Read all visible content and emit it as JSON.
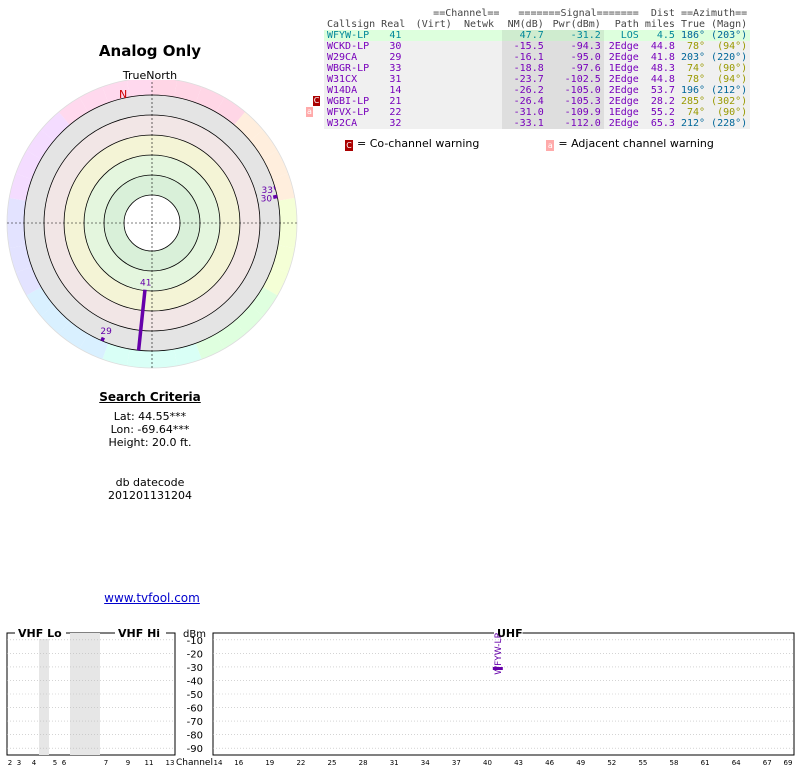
{
  "title": "Analog Only",
  "true_north_label": "TrueNorth",
  "north_marker": "N",
  "search": {
    "heading": "Search Criteria",
    "lat": "Lat: 44.55***",
    "lon": "Lon: -69.64***",
    "height": "Height: 20.0 ft.",
    "db_label": "db datecode",
    "db_value": "201201131204"
  },
  "site_link": "www.tvfool.com",
  "table": {
    "group_headers": {
      "channel": "==Channel==",
      "signal": "=======Signal=======",
      "dist": "Dist",
      "azimuth": "==Azimuth=="
    },
    "headers": [
      "Callsign",
      "Real",
      "(Virt)",
      "Netwk",
      "NM(dB)",
      "Pwr(dBm)",
      "Path",
      "miles",
      "True",
      "(Magn)"
    ],
    "rows": [
      {
        "callsign": "WFYW-LP",
        "real": "41",
        "virt": "",
        "netwk": "",
        "nm": "47.7",
        "pwr": "-31.2",
        "path": "LOS",
        "miles": "4.5",
        "true": "186°",
        "magn": "(203°)",
        "color": "#008899",
        "bg": "#ddffdd"
      },
      {
        "callsign": "WCKD-LP",
        "real": "30",
        "virt": "",
        "netwk": "",
        "nm": "-15.5",
        "pwr": "-94.3",
        "path": "2Edge",
        "miles": "44.8",
        "true": "78°",
        "magn": "(94°)",
        "color": "#7700bb",
        "bg": "#f0f0f0"
      },
      {
        "callsign": "W29CA",
        "real": "29",
        "virt": "",
        "netwk": "",
        "nm": "-16.1",
        "pwr": "-95.0",
        "path": "2Edge",
        "miles": "41.8",
        "true": "203°",
        "magn": "(220°)",
        "color": "#7700bb",
        "bg": "#f0f0f0"
      },
      {
        "callsign": "WBGR-LP",
        "real": "33",
        "virt": "",
        "netwk": "",
        "nm": "-18.8",
        "pwr": "-97.6",
        "path": "1Edge",
        "miles": "48.3",
        "true": "74°",
        "magn": "(90°)",
        "color": "#7700bb",
        "bg": "#f0f0f0"
      },
      {
        "callsign": "W31CX",
        "real": "31",
        "virt": "",
        "netwk": "",
        "nm": "-23.7",
        "pwr": "-102.5",
        "path": "2Edge",
        "miles": "44.8",
        "true": "78°",
        "magn": "(94°)",
        "color": "#7700bb",
        "bg": "#f0f0f0"
      },
      {
        "callsign": "W14DA",
        "real": "14",
        "virt": "",
        "netwk": "",
        "nm": "-26.2",
        "pwr": "-105.0",
        "path": "2Edge",
        "miles": "53.7",
        "true": "196°",
        "magn": "(212°)",
        "color": "#7700bb",
        "bg": "#f0f0f0"
      },
      {
        "callsign": "WGBI-LP",
        "real": "21",
        "virt": "",
        "netwk": "",
        "nm": "-26.4",
        "pwr": "-105.3",
        "path": "2Edge",
        "miles": "28.2",
        "true": "285°",
        "magn": "(302°)",
        "color": "#7700bb",
        "bg": "#f0f0f0"
      },
      {
        "callsign": "WFVX-LP",
        "real": "22",
        "virt": "",
        "netwk": "",
        "nm": "-31.0",
        "pwr": "-109.9",
        "path": "1Edge",
        "miles": "55.2",
        "true": "74°",
        "magn": "(90°)",
        "color": "#7700bb",
        "bg": "#f0f0f0"
      },
      {
        "callsign": "W32CA",
        "real": "32",
        "virt": "",
        "netwk": "",
        "nm": "-33.1",
        "pwr": "-112.0",
        "path": "2Edge",
        "miles": "65.3",
        "true": "212°",
        "magn": "(228°)",
        "color": "#7700bb",
        "bg": "#f0f0f0"
      }
    ],
    "warning_marks": [
      {
        "row": 6,
        "type": "co",
        "letter": "C"
      },
      {
        "row": 7,
        "type": "adj",
        "letter": "a"
      }
    ]
  },
  "legend": {
    "co_text": "= Co-channel warning",
    "adj_text": "= Adjacent channel warning",
    "co_letter": "C",
    "adj_letter": "a"
  },
  "colors": {
    "co_warning": "#aa0000",
    "adj_warning": "#ffaaaa",
    "station": "#6600aa",
    "north": "#cc0000"
  },
  "chart_data": [
    {
      "type": "scatter",
      "title": "Analog Only",
      "description_axes": "polar: azimuth in degrees (true north up), radius = noise margin",
      "points": [
        {
          "label": "41",
          "azimuth": 186,
          "nm": 47.7
        },
        {
          "label": "30",
          "azimuth": 78,
          "nm": -15.5
        },
        {
          "label": "29",
          "azimuth": 203,
          "nm": -16.1
        },
        {
          "label": "33",
          "azimuth": 74,
          "nm": -18.8
        }
      ]
    },
    {
      "type": "bar",
      "title": "",
      "sections": [
        "VHF Lo",
        "VHF Hi",
        "UHF"
      ],
      "ylabel": "dBm",
      "xlabel": "Channel",
      "ylim": [
        -95,
        -5
      ],
      "yticks": [
        "-10",
        "-20",
        "-30",
        "-40",
        "-50",
        "-60",
        "-70",
        "-80",
        "-90"
      ],
      "vhf_lo_ticks": [
        "2",
        "3",
        "4",
        "5",
        "6"
      ],
      "vhf_hi_ticks": [
        "7",
        "9",
        "11",
        "13"
      ],
      "uhf_ticks": [
        "14",
        "16",
        "19",
        "22",
        "25",
        "28",
        "31",
        "34",
        "37",
        "40",
        "43",
        "46",
        "49",
        "52",
        "55",
        "58",
        "61",
        "64",
        "67",
        "69"
      ],
      "bars": [
        {
          "channel": 41,
          "label": "WFYW-LP",
          "pwr_dbm": -31.2
        }
      ]
    }
  ]
}
